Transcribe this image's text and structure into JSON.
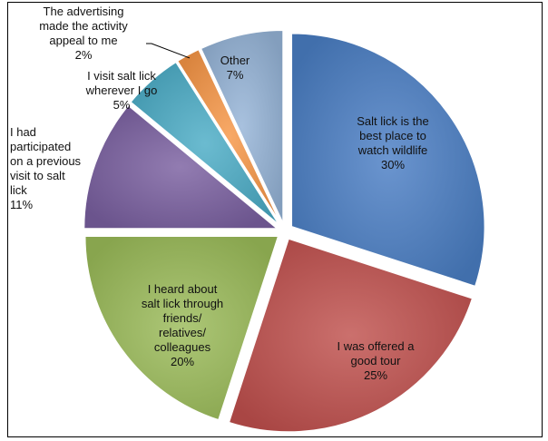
{
  "chart_data": {
    "type": "pie",
    "title": "",
    "slices": [
      {
        "label_lines": [
          "Salt lick is the",
          "best place to",
          "watch wildlife",
          "30%"
        ],
        "value": 30,
        "color": "#4A7EC4"
      },
      {
        "label_lines": [
          "I was offered a",
          "good tour",
          "25%"
        ],
        "value": 25,
        "color": "#C0504D"
      },
      {
        "label_lines": [
          "I heard about",
          "salt lick through",
          "friends/",
          "relatives/",
          "colleagues",
          "20%"
        ],
        "value": 20,
        "color": "#9BBB59"
      },
      {
        "label_lines": [
          "I had",
          "participated",
          "on a previous",
          "visit to salt",
          "lick",
          "11%"
        ],
        "value": 11,
        "color": "#7A5FA0"
      },
      {
        "label_lines": [
          "I visit salt lick",
          "wherever I go",
          "5%"
        ],
        "value": 5,
        "color": "#4BACC6"
      },
      {
        "label_lines": [
          "The advertising",
          "made the activity",
          "appeal to me",
          "2%"
        ],
        "value": 2,
        "color": "#F79646"
      },
      {
        "label_lines": [
          "Other",
          "7%"
        ],
        "value": 7,
        "color": "#95B3D7"
      }
    ]
  }
}
